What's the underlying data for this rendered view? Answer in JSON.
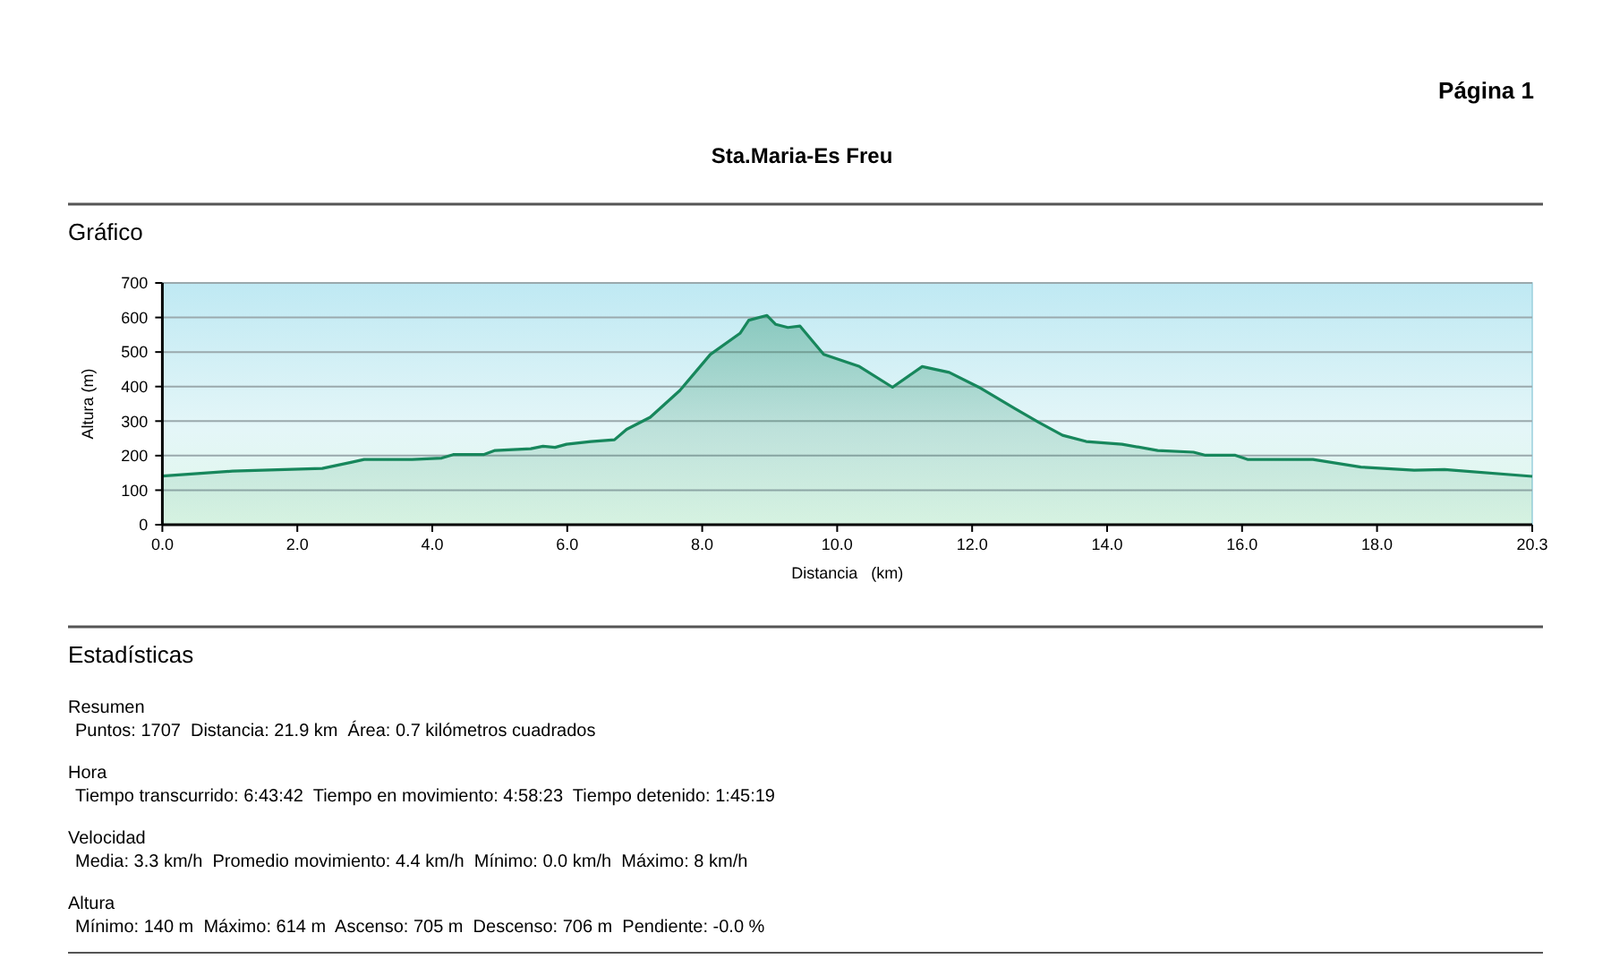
{
  "chart_data": {
    "type": "area",
    "title": "Sta.Maria-Es Freu",
    "xlabel": "Distancia   (km)",
    "ylabel": "Altura (m)",
    "annotations": [
      "Página 1",
      "Gráfico",
      "Estadísticas",
      "Resumen",
      "Puntos: 1707  Distancia: 21.9 km  Área: 0.7 kilómetros cuadrados",
      "Hora",
      "Tiempo transcurrido: 6:43:42  Tiempo en movimiento: 4:58:23  Tiempo detenido: 1:45:19",
      "Velocidad",
      "Media: 3.3 km/h  Promedio movimiento: 4.4 km/h  Mínimo: 0.0 km/h  Máximo: 8 km/h",
      "Altura",
      "Mínimo: 140 m  Máximo: 614 m  Ascenso: 705 m  Descenso: 706 m  Pendiente: -0.0 %"
    ],
    "x": [
      0,
      1.04,
      2.37,
      2.81,
      2.99,
      3.7,
      4.14,
      4.31,
      4.76,
      4.93,
      5.46,
      5.64,
      5.82,
      5.99,
      6.35,
      6.7,
      6.88,
      7.23,
      7.67,
      8.12,
      8.56,
      8.69,
      8.96,
      9.09,
      9.27,
      9.45,
      9.8,
      10.33,
      10.82,
      11.26,
      11.66,
      12.1,
      12.63,
      12.98,
      13.34,
      13.69,
      14.22,
      14.75,
      15.28,
      15.46,
      15.9,
      16.08,
      17.05,
      17.76,
      18.55,
      19.0,
      20.3
    ],
    "series": [
      {
        "color": "#17875c",
        "values": [
          141,
          155,
          163,
          181,
          189,
          189,
          193,
          203,
          203,
          215,
          220,
          227,
          224,
          233,
          241,
          246,
          276,
          311,
          389,
          493,
          554,
          592,
          606,
          580,
          571,
          575,
          493,
          458,
          398,
          458,
          441,
          398,
          337,
          297,
          259,
          241,
          233,
          215,
          210,
          201,
          201,
          189,
          189,
          167,
          158,
          160,
          140
        ]
      }
    ],
    "xlim": [
      0,
      20.3
    ],
    "xticks": [
      {
        "value": 0,
        "label": "0.0"
      },
      {
        "value": 2,
        "label": "2.0"
      },
      {
        "value": 4,
        "label": "4.0"
      },
      {
        "value": 6,
        "label": "6.0"
      },
      {
        "value": 8,
        "label": "8.0"
      },
      {
        "value": 10,
        "label": "10.0"
      },
      {
        "value": 12,
        "label": "12.0"
      },
      {
        "value": 14,
        "label": "14.0"
      },
      {
        "value": 16,
        "label": "16.0"
      },
      {
        "value": 18,
        "label": "18.0"
      },
      20.3
    ],
    "ylim": [
      0,
      700
    ],
    "yticks": [
      0,
      100,
      200,
      300,
      400,
      500,
      600,
      700
    ],
    "grid": "y",
    "marker": "none",
    "line_style": "solid"
  }
}
